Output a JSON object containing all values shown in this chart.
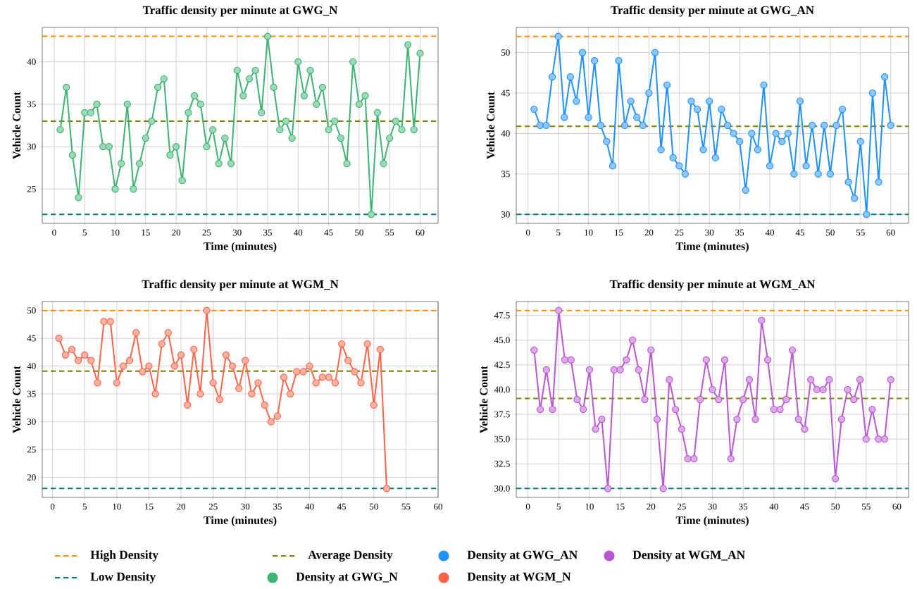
{
  "chart_data": [
    {
      "type": "line",
      "title": "Traffic density per minute at GWG_N",
      "xlabel": "Time (minutes)",
      "ylabel": "Vehicle Count",
      "grid": true,
      "legend": "bottom",
      "marker": "circle",
      "line_style": "solid",
      "xlim": [
        -1.95,
        62.95
      ],
      "ylim": [
        20.95,
        44.05
      ],
      "xticks": [
        0,
        5,
        10,
        15,
        20,
        25,
        30,
        35,
        40,
        45,
        50,
        55,
        60
      ],
      "yticks": [
        25,
        30,
        35,
        40
      ],
      "x": [
        1,
        2,
        3,
        4,
        5,
        6,
        7,
        8,
        9,
        10,
        11,
        12,
        13,
        14,
        15,
        16,
        17,
        18,
        19,
        20,
        21,
        22,
        23,
        24,
        25,
        26,
        27,
        28,
        29,
        30,
        31,
        32,
        33,
        34,
        35,
        36,
        37,
        38,
        39,
        40,
        41,
        42,
        43,
        44,
        45,
        46,
        47,
        48,
        49,
        50,
        51,
        52,
        53,
        54,
        55,
        56,
        57,
        58,
        59,
        60
      ],
      "series": [
        {
          "name": "Density at GWG_N",
          "color": "#3cb371",
          "values": [
            32,
            37,
            29,
            24,
            34,
            34,
            35,
            30,
            30,
            25,
            28,
            35,
            25,
            28,
            31,
            33,
            37,
            38,
            29,
            30,
            26,
            34,
            36,
            35,
            30,
            32,
            28,
            31,
            28,
            39,
            36,
            38,
            39,
            34,
            43,
            37,
            32,
            33,
            31,
            40,
            36,
            39,
            35,
            37,
            32,
            33,
            31,
            28,
            40,
            35,
            36,
            22,
            34,
            28,
            31,
            33,
            32,
            42,
            32,
            41
          ]
        }
      ],
      "ref_lines": [
        {
          "axis": "y",
          "value": 43,
          "label": "High Density",
          "color": "#ff8c00",
          "line_style": "dashed"
        },
        {
          "axis": "y",
          "value": 22,
          "label": "Low Density",
          "color": "#008080",
          "line_style": "dashed"
        },
        {
          "axis": "y",
          "value": 33,
          "label": "Average Density",
          "color": "#808000",
          "line_style": "dashed"
        }
      ]
    },
    {
      "type": "line",
      "title": "Traffic density per minute at GWG_AN",
      "xlabel": "Time (minutes)",
      "ylabel": "Vehicle Count",
      "grid": true,
      "legend": "bottom",
      "marker": "circle",
      "line_style": "solid",
      "xlim": [
        -1.95,
        62.95
      ],
      "ylim": [
        28.9,
        53.1
      ],
      "xticks": [
        0,
        5,
        10,
        15,
        20,
        25,
        30,
        35,
        40,
        45,
        50,
        55,
        60
      ],
      "yticks": [
        30,
        35,
        40,
        45,
        50
      ],
      "x": [
        1,
        2,
        3,
        4,
        5,
        6,
        7,
        8,
        9,
        10,
        11,
        12,
        13,
        14,
        15,
        16,
        17,
        18,
        19,
        20,
        21,
        22,
        23,
        24,
        25,
        26,
        27,
        28,
        29,
        30,
        31,
        32,
        33,
        34,
        35,
        36,
        37,
        38,
        39,
        40,
        41,
        42,
        43,
        44,
        45,
        46,
        47,
        48,
        49,
        50,
        51,
        52,
        53,
        54,
        55,
        56,
        57,
        58,
        59,
        60
      ],
      "series": [
        {
          "name": "Density at GWG_AN",
          "color": "#1e90ff",
          "values": [
            43,
            41,
            41,
            47,
            52,
            42,
            47,
            44,
            50,
            42,
            49,
            41,
            39,
            36,
            49,
            41,
            44,
            42,
            41,
            45,
            50,
            38,
            46,
            37,
            36,
            35,
            44,
            43,
            38,
            44,
            37,
            43,
            41,
            40,
            39,
            33,
            40,
            38,
            46,
            36,
            40,
            39,
            40,
            35,
            44,
            36,
            41,
            35,
            41,
            35,
            41,
            43,
            34,
            32,
            39,
            30,
            45,
            34,
            47,
            41
          ]
        }
      ],
      "ref_lines": [
        {
          "axis": "y",
          "value": 52,
          "color": "#ff8c00",
          "line_style": "dashed"
        },
        {
          "axis": "y",
          "value": 30,
          "color": "#008080",
          "line_style": "dashed"
        },
        {
          "axis": "y",
          "value": 40.9,
          "color": "#808000",
          "line_style": "dashed"
        }
      ]
    },
    {
      "type": "line",
      "title": "Traffic density per minute at WGM_N",
      "xlabel": "Time (minutes)",
      "ylabel": "Vehicle Count",
      "grid": true,
      "legend": "bottom",
      "marker": "circle",
      "line_style": "solid",
      "xlim": [
        -1.6,
        60
      ],
      "ylim": [
        16.4,
        51.6
      ],
      "xticks": [
        0,
        5,
        10,
        15,
        20,
        25,
        30,
        35,
        40,
        45,
        50,
        55,
        60
      ],
      "yticks": [
        20,
        25,
        30,
        35,
        40,
        45,
        50
      ],
      "x": [
        1,
        2,
        3,
        4,
        5,
        6,
        7,
        8,
        9,
        10,
        11,
        12,
        13,
        14,
        15,
        16,
        17,
        18,
        19,
        20,
        21,
        22,
        23,
        24,
        25,
        26,
        27,
        28,
        29,
        30,
        31,
        32,
        33,
        34,
        35,
        36,
        37,
        38,
        39,
        40,
        41,
        42,
        43,
        44,
        45,
        46,
        47,
        48,
        49,
        50,
        51,
        52
      ],
      "series": [
        {
          "name": "Density at WGM_N",
          "color": "#ff6347",
          "values": [
            45,
            42,
            43,
            41,
            42,
            41,
            37,
            48,
            48,
            37,
            40,
            41,
            46,
            39,
            40,
            35,
            44,
            46,
            40,
            42,
            33,
            43,
            35,
            50,
            37,
            34,
            42,
            40,
            36,
            41,
            35,
            37,
            33,
            30,
            31,
            38,
            35,
            39,
            39,
            40,
            37,
            38,
            38,
            37,
            44,
            41,
            39,
            37,
            44,
            33,
            43,
            18
          ]
        }
      ],
      "ref_lines": [
        {
          "axis": "y",
          "value": 50,
          "color": "#ff8c00",
          "line_style": "dashed"
        },
        {
          "axis": "y",
          "value": 18,
          "color": "#008080",
          "line_style": "dashed"
        },
        {
          "axis": "y",
          "value": 39.1,
          "color": "#808000",
          "line_style": "dashed"
        }
      ]
    },
    {
      "type": "line",
      "title": "Traffic density per minute at WGM_AN",
      "xlabel": "Time (minutes)",
      "ylabel": "Vehicle Count",
      "grid": true,
      "legend": "bottom",
      "marker": "circle",
      "line_style": "solid",
      "xlim": [
        -1.9,
        61.9
      ],
      "ylim": [
        29.1,
        48.9
      ],
      "xticks": [
        0,
        5,
        10,
        15,
        20,
        25,
        30,
        35,
        40,
        45,
        50,
        55,
        60
      ],
      "yticks": [
        {
          "value": 30,
          "label": "30.0"
        },
        {
          "value": 32.5,
          "label": "32.5"
        },
        {
          "value": 35,
          "label": "35.0"
        },
        {
          "value": 37.5,
          "label": "37.5"
        },
        {
          "value": 40,
          "label": "40.0"
        },
        {
          "value": 42.5,
          "label": "42.5"
        },
        {
          "value": 45,
          "label": "45.0"
        },
        {
          "value": 47.5,
          "label": "47.5"
        }
      ],
      "x": [
        1,
        2,
        3,
        4,
        5,
        6,
        7,
        8,
        9,
        10,
        11,
        12,
        13,
        14,
        15,
        16,
        17,
        18,
        19,
        20,
        21,
        22,
        23,
        24,
        25,
        26,
        27,
        28,
        29,
        30,
        31,
        32,
        33,
        34,
        35,
        36,
        37,
        38,
        39,
        40,
        41,
        42,
        43,
        44,
        45,
        46,
        47,
        48,
        49,
        50,
        51,
        52,
        53,
        54,
        55,
        56,
        57,
        58,
        59
      ],
      "series": [
        {
          "name": "Density at WGM_AN",
          "color": "#ba55d3",
          "values": [
            44,
            38,
            42,
            38,
            48,
            43,
            43,
            39,
            38,
            42,
            36,
            37,
            30,
            42,
            42,
            43,
            45,
            42,
            39,
            44,
            37,
            30,
            41,
            38,
            36,
            33,
            33,
            39,
            43,
            40,
            39,
            43,
            33,
            37,
            39,
            41,
            37,
            47,
            43,
            38,
            38,
            39,
            44,
            37,
            36,
            41,
            40,
            40,
            41,
            31,
            37,
            40,
            39,
            41,
            35,
            38,
            35,
            35,
            41
          ]
        }
      ],
      "ref_lines": [
        {
          "axis": "y",
          "value": 48,
          "color": "#ff8c00",
          "line_style": "dashed"
        },
        {
          "axis": "y",
          "value": 30,
          "color": "#008080",
          "line_style": "dashed"
        },
        {
          "axis": "y",
          "value": 39.1,
          "color": "#808000",
          "line_style": "dashed"
        }
      ]
    }
  ]
}
